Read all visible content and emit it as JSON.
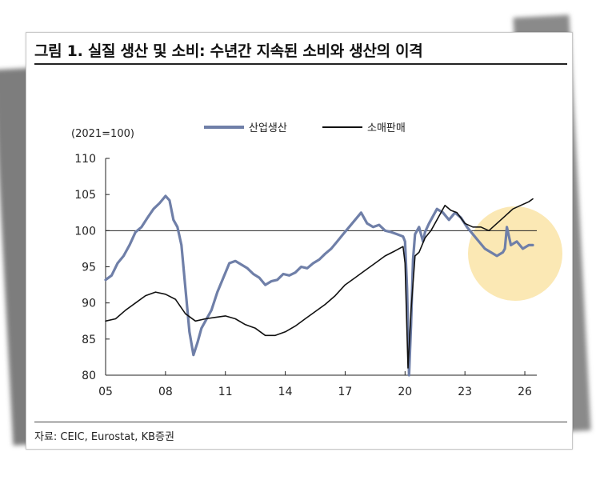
{
  "title": "그림 1. 실질 생산 및 소비: 수년간 지속된 소비와 생산의 이격",
  "source": "자료: CEIC, Eurostat, KB증권",
  "colors": {
    "production": "#6f7fa8",
    "retail": "#111111",
    "highlight": "#fbe8b4"
  },
  "chart_data": {
    "type": "line",
    "unit_label": "(2021=100)",
    "ylim": [
      80,
      110
    ],
    "yticks": [
      80,
      85,
      90,
      95,
      100,
      105,
      110
    ],
    "xlim": [
      2005,
      2026.6
    ],
    "xticks": [
      2005,
      2008,
      2011,
      2014,
      2017,
      2020,
      2023,
      2026
    ],
    "xtick_labels": [
      "05",
      "08",
      "11",
      "14",
      "17",
      "20",
      "23",
      "26"
    ],
    "reference_line": 100,
    "grid": false,
    "legend_position": "top-center",
    "highlight_note": "shaded circle around 2024-2026",
    "series": [
      {
        "name": "산업생산",
        "x": [
          2005.0,
          2005.3,
          2005.6,
          2005.9,
          2006.2,
          2006.5,
          2006.8,
          2007.1,
          2007.4,
          2007.7,
          2008.0,
          2008.2,
          2008.4,
          2008.6,
          2008.8,
          2009.0,
          2009.2,
          2009.4,
          2009.6,
          2009.8,
          2010.0,
          2010.3,
          2010.6,
          2010.9,
          2011.2,
          2011.5,
          2011.8,
          2012.1,
          2012.4,
          2012.7,
          2013.0,
          2013.3,
          2013.6,
          2013.9,
          2014.2,
          2014.5,
          2014.8,
          2015.1,
          2015.4,
          2015.7,
          2016.0,
          2016.3,
          2016.6,
          2016.9,
          2017.2,
          2017.5,
          2017.8,
          2018.1,
          2018.4,
          2018.7,
          2019.0,
          2019.3,
          2019.6,
          2019.9,
          2020.0,
          2020.1,
          2020.2,
          2020.3,
          2020.4,
          2020.5,
          2020.7,
          2020.9,
          2021.0,
          2021.2,
          2021.4,
          2021.6,
          2021.9,
          2022.2,
          2022.5,
          2022.8,
          2023.1,
          2023.4,
          2023.7,
          2024.0,
          2024.3,
          2024.6,
          2024.9,
          2025.0,
          2025.1,
          2025.3,
          2025.6,
          2025.9,
          2026.2,
          2026.4
        ],
        "values": [
          93.2,
          93.8,
          95.5,
          96.5,
          98.0,
          99.8,
          100.5,
          101.8,
          103.0,
          103.8,
          104.8,
          104.2,
          101.5,
          100.5,
          98.0,
          92.0,
          86.0,
          82.8,
          84.5,
          86.5,
          87.5,
          89.0,
          91.5,
          93.5,
          95.5,
          95.8,
          95.3,
          94.8,
          94.0,
          93.5,
          92.5,
          93.0,
          93.2,
          94.0,
          93.8,
          94.2,
          95.0,
          94.8,
          95.5,
          96.0,
          96.8,
          97.5,
          98.5,
          99.5,
          100.5,
          101.5,
          102.5,
          101.0,
          100.5,
          100.8,
          100.0,
          99.8,
          99.5,
          99.2,
          98.5,
          92.0,
          80.0,
          87.0,
          96.0,
          99.5,
          100.5,
          98.5,
          99.8,
          101.0,
          102.0,
          103.0,
          102.5,
          101.5,
          102.5,
          101.8,
          100.5,
          99.5,
          98.5,
          97.5,
          97.0,
          96.5,
          97.0,
          97.5,
          100.5,
          98.0,
          98.5,
          97.5,
          98.0,
          98.0
        ]
      },
      {
        "name": "소매판매",
        "x": [
          2005.0,
          2005.5,
          2006.0,
          2006.5,
          2007.0,
          2007.5,
          2008.0,
          2008.5,
          2009.0,
          2009.5,
          2010.0,
          2010.5,
          2011.0,
          2011.5,
          2012.0,
          2012.5,
          2013.0,
          2013.5,
          2014.0,
          2014.5,
          2015.0,
          2015.5,
          2016.0,
          2016.5,
          2017.0,
          2017.5,
          2018.0,
          2018.5,
          2019.0,
          2019.5,
          2019.9,
          2020.0,
          2020.15,
          2020.3,
          2020.5,
          2020.7,
          2021.0,
          2021.3,
          2021.6,
          2022.0,
          2022.3,
          2022.6,
          2023.0,
          2023.4,
          2023.8,
          2024.2,
          2024.6,
          2025.0,
          2025.4,
          2025.8,
          2026.2,
          2026.4
        ],
        "values": [
          87.5,
          87.8,
          89.0,
          90.0,
          91.0,
          91.5,
          91.2,
          90.5,
          88.5,
          87.5,
          87.8,
          88.0,
          88.2,
          87.8,
          87.0,
          86.5,
          85.5,
          85.5,
          86.0,
          86.8,
          87.8,
          88.8,
          89.8,
          91.0,
          92.5,
          93.5,
          94.5,
          95.5,
          96.5,
          97.2,
          97.8,
          95.5,
          81.0,
          89.0,
          96.5,
          97.0,
          99.0,
          100.0,
          101.5,
          103.5,
          102.8,
          102.5,
          101.0,
          100.5,
          100.5,
          100.0,
          101.0,
          102.0,
          103.0,
          103.5,
          104.0,
          104.4
        ]
      }
    ]
  }
}
